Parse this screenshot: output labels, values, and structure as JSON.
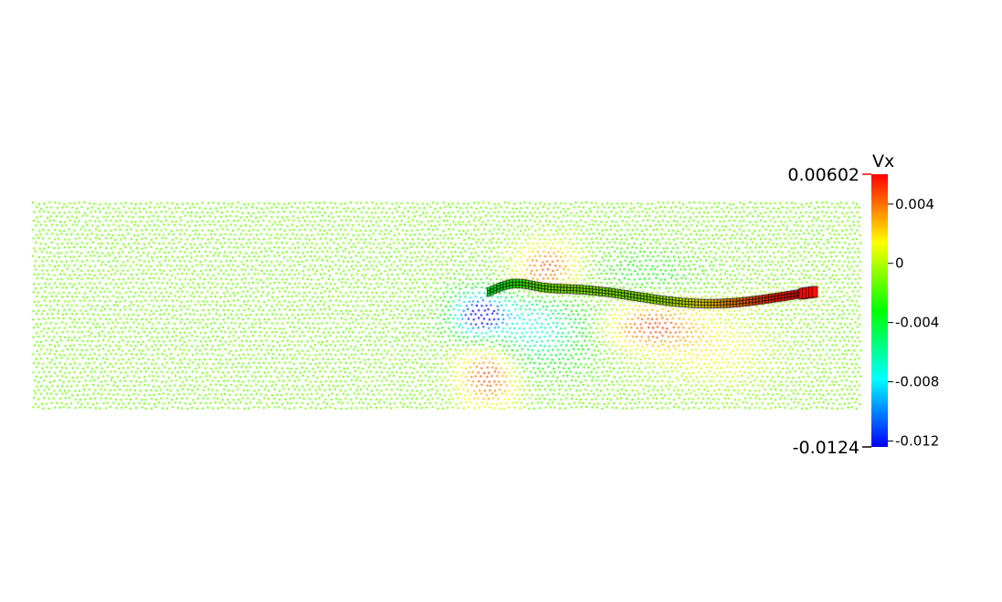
{
  "colorbar": {
    "title": "Vx",
    "range_labels": {
      "max": "0.00602",
      "min": "-0.0124"
    },
    "ticks": [
      {
        "label": "0.004",
        "value": 0.004
      },
      {
        "label": "0",
        "value": 0
      },
      {
        "label": "-0.004",
        "value": -0.004
      },
      {
        "label": "-0.008",
        "value": -0.008
      },
      {
        "label": "-0.012",
        "value": -0.012
      }
    ],
    "value_range": [
      -0.0124,
      0.00602
    ],
    "colormap": [
      "#0000ff",
      "#00ffff",
      "#00ff00",
      "#ffff00",
      "#ff0000"
    ],
    "range_marker_color": "#ff0000"
  },
  "scene": {
    "background": "#ffffff",
    "field_colormap": "rainbow",
    "filament_outline_color": "#000000"
  }
}
